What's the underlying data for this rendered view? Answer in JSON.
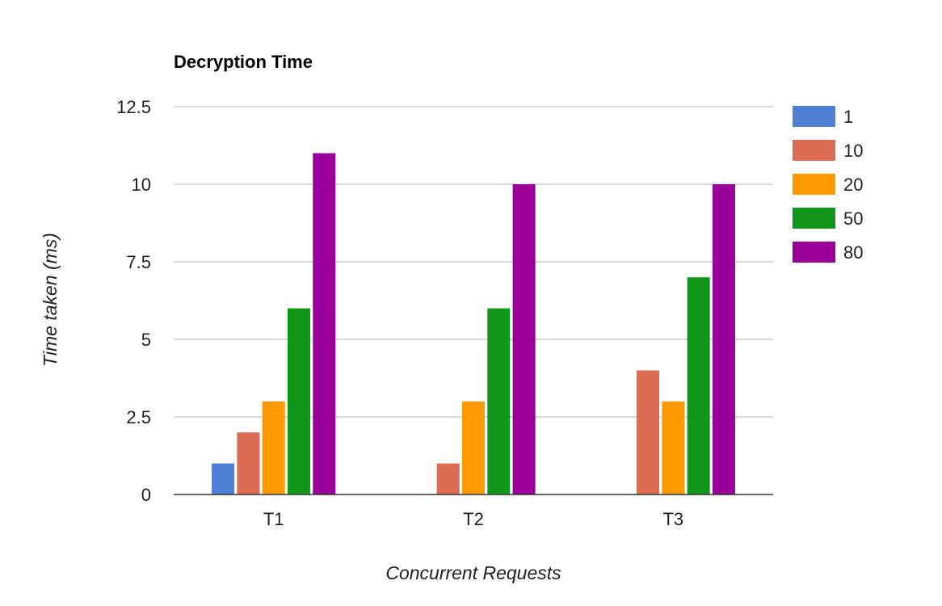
{
  "chart_data": {
    "type": "bar",
    "title": "Decryption Time",
    "xlabel": "Concurrent Requests",
    "ylabel": "Time taken (ms)",
    "categories": [
      "T1",
      "T2",
      "T3"
    ],
    "ylim": [
      0,
      12.5
    ],
    "yticks": [
      "0",
      "2.5",
      "5",
      "7.5",
      "10",
      "12.5"
    ],
    "ytick_values": [
      0,
      2.5,
      5,
      7.5,
      10,
      12.5
    ],
    "grid": true,
    "legend_position": "right",
    "series": [
      {
        "name": "1",
        "color": "#4e7fd5",
        "values": [
          1,
          0,
          0
        ]
      },
      {
        "name": "10",
        "color": "#dc6d54",
        "values": [
          2,
          1,
          4
        ]
      },
      {
        "name": "20",
        "color": "#ff9900",
        "values": [
          3,
          3,
          3
        ]
      },
      {
        "name": "50",
        "color": "#109618",
        "values": [
          6,
          6,
          7
        ]
      },
      {
        "name": "80",
        "color": "#990099",
        "values": [
          11,
          10,
          10
        ]
      }
    ]
  }
}
